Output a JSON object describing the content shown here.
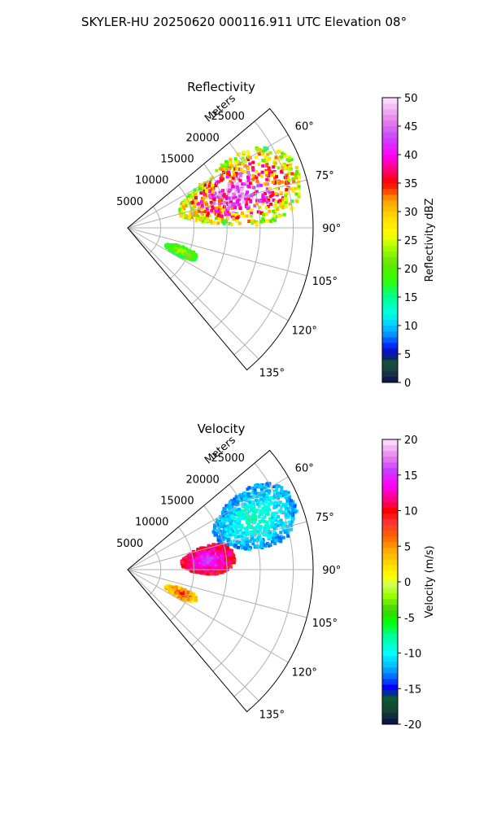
{
  "figure": {
    "suptitle": "SKYLER-HU  20250620  000116.911 UTC Elevation 08°"
  },
  "chart_data": [
    {
      "type": "heatmap",
      "projection": "polar-sector",
      "title": "Reflectivity",
      "range_label": "Meters",
      "range_ticks": [
        5000,
        10000,
        15000,
        20000,
        25000
      ],
      "range_max": 28000,
      "azimuth_ticks": [
        "60°",
        "75°",
        "90°",
        "105°",
        "120°",
        "135°"
      ],
      "azimuth_range": [
        50,
        140
      ],
      "grid": true,
      "colorbar": {
        "label": "Reflectivity dBZ",
        "ticks": [
          "0",
          "5",
          "10",
          "15",
          "20",
          "25",
          "30",
          "35",
          "40",
          "45",
          "50"
        ],
        "range": [
          0,
          50
        ]
      },
      "echoes": [
        {
          "name": "main-storm",
          "az": [
            55,
            88
          ],
          "range_km": [
            8,
            27
          ],
          "value_range": [
            15,
            48
          ]
        },
        {
          "name": "south-cell",
          "az": [
            108,
            118
          ],
          "range_km": [
            6,
            11
          ],
          "value_range": [
            15,
            25
          ]
        }
      ]
    },
    {
      "type": "heatmap",
      "projection": "polar-sector",
      "title": "Velocity",
      "range_label": "Meters",
      "range_ticks": [
        5000,
        10000,
        15000,
        20000,
        25000
      ],
      "range_max": 28000,
      "azimuth_ticks": [
        "60°",
        "75°",
        "90°",
        "105°",
        "120°",
        "135°"
      ],
      "azimuth_range": [
        50,
        140
      ],
      "grid": true,
      "colorbar": {
        "label": "Velocity (m/s)",
        "ticks": [
          "-20",
          "-15",
          "-10",
          "-5",
          "0",
          "5",
          "10",
          "15",
          "20"
        ],
        "range": [
          -20,
          20
        ]
      },
      "echoes": [
        {
          "name": "main-storm-inbound",
          "az": [
            55,
            80
          ],
          "range_km": [
            14,
            27
          ],
          "value_range": [
            -14,
            -8
          ]
        },
        {
          "name": "main-storm-outbound",
          "az": [
            72,
            92
          ],
          "range_km": [
            8,
            16
          ],
          "value_range": [
            8,
            16
          ]
        },
        {
          "name": "south-cell",
          "az": [
            108,
            118
          ],
          "range_km": [
            6,
            11
          ],
          "value_range": [
            0,
            10
          ]
        }
      ]
    }
  ],
  "colors": {
    "grid": "#b0b0b0",
    "axis": "#000000"
  }
}
